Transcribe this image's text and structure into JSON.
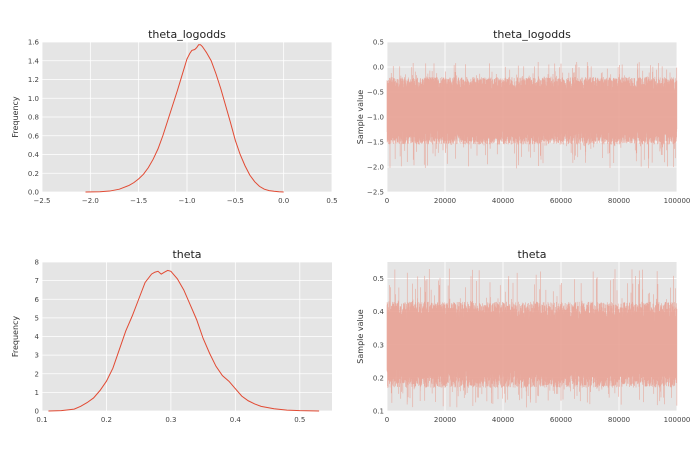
{
  "chart_data": [
    {
      "type": "line",
      "title": "theta_logodds",
      "xlabel": "",
      "ylabel": "Frequency",
      "xlim": [
        -2.5,
        0.5
      ],
      "ylim": [
        0,
        1.6
      ],
      "xticks": [
        -2.5,
        -2.0,
        -1.5,
        -1.0,
        -0.5,
        0.0,
        0.5
      ],
      "yticks": [
        0.0,
        0.2,
        0.4,
        0.6,
        0.8,
        1.0,
        1.2,
        1.4,
        1.6
      ],
      "xtick_labels": [
        "−2.5",
        "−2.0",
        "−1.5",
        "−1.0",
        "−0.5",
        "0.0",
        "0.5"
      ],
      "ytick_labels": [
        "0.0",
        "0.2",
        "0.4",
        "0.6",
        "0.8",
        "1.0",
        "1.2",
        "1.4",
        "1.6"
      ],
      "series": [
        {
          "color": "#e24a33",
          "x": [
            -2.05,
            -1.9,
            -1.8,
            -1.7,
            -1.6,
            -1.55,
            -1.5,
            -1.45,
            -1.4,
            -1.35,
            -1.3,
            -1.25,
            -1.2,
            -1.15,
            -1.1,
            -1.05,
            -1.0,
            -0.97,
            -0.95,
            -0.92,
            -0.9,
            -0.88,
            -0.86,
            -0.84,
            -0.82,
            -0.8,
            -0.75,
            -0.7,
            -0.65,
            -0.6,
            -0.55,
            -0.5,
            -0.45,
            -0.4,
            -0.35,
            -0.3,
            -0.25,
            -0.2,
            -0.15,
            -0.1,
            -0.05,
            0.0
          ],
          "y": [
            0.0,
            0.003,
            0.01,
            0.03,
            0.07,
            0.1,
            0.14,
            0.19,
            0.26,
            0.35,
            0.46,
            0.6,
            0.76,
            0.92,
            1.08,
            1.25,
            1.42,
            1.48,
            1.51,
            1.52,
            1.54,
            1.57,
            1.57,
            1.55,
            1.52,
            1.49,
            1.4,
            1.26,
            1.1,
            0.92,
            0.74,
            0.55,
            0.4,
            0.28,
            0.18,
            0.11,
            0.06,
            0.03,
            0.015,
            0.008,
            0.003,
            0.0
          ]
        }
      ]
    },
    {
      "type": "line",
      "title": "theta_logodds",
      "xlabel": "",
      "ylabel": "Sample value",
      "xlim": [
        0,
        100000
      ],
      "ylim": [
        -2.5,
        0.5
      ],
      "xticks": [
        0,
        20000,
        40000,
        60000,
        80000,
        100000
      ],
      "yticks": [
        -2.5,
        -2.0,
        -1.5,
        -1.0,
        -0.5,
        0.0,
        0.5
      ],
      "xtick_labels": [
        "0",
        "20000",
        "40000",
        "60000",
        "80000",
        "100000"
      ],
      "ytick_labels": [
        "−2.5",
        "−2.0",
        "−1.5",
        "−1.0",
        "−0.5",
        "0.0",
        "0.5"
      ],
      "trace": {
        "n": 100000,
        "center": -0.87,
        "band": [
          -1.55,
          -0.2
        ],
        "extremes": [
          -2.05,
          0.1
        ],
        "color": "#e8a194"
      }
    },
    {
      "type": "line",
      "title": "theta",
      "xlabel": "",
      "ylabel": "Frequency",
      "xlim": [
        0.1,
        0.55
      ],
      "ylim": [
        0,
        8
      ],
      "xticks": [
        0.1,
        0.2,
        0.3,
        0.4,
        0.5
      ],
      "yticks": [
        0,
        1,
        2,
        3,
        4,
        5,
        6,
        7,
        8
      ],
      "xtick_labels": [
        "0.1",
        "0.2",
        "0.3",
        "0.4",
        "0.5"
      ],
      "ytick_labels": [
        "0",
        "1",
        "2",
        "3",
        "4",
        "5",
        "6",
        "7",
        "8"
      ],
      "series": [
        {
          "color": "#e24a33",
          "x": [
            0.11,
            0.13,
            0.15,
            0.16,
            0.17,
            0.18,
            0.19,
            0.2,
            0.21,
            0.22,
            0.23,
            0.24,
            0.25,
            0.26,
            0.27,
            0.275,
            0.28,
            0.285,
            0.29,
            0.295,
            0.3,
            0.305,
            0.31,
            0.32,
            0.33,
            0.34,
            0.35,
            0.36,
            0.37,
            0.38,
            0.39,
            0.4,
            0.41,
            0.42,
            0.43,
            0.44,
            0.46,
            0.48,
            0.5,
            0.53
          ],
          "y": [
            0.0,
            0.02,
            0.1,
            0.25,
            0.45,
            0.7,
            1.1,
            1.6,
            2.3,
            3.3,
            4.3,
            5.1,
            6.0,
            6.9,
            7.35,
            7.45,
            7.5,
            7.35,
            7.45,
            7.55,
            7.5,
            7.3,
            7.1,
            6.5,
            5.7,
            4.9,
            3.9,
            3.1,
            2.4,
            1.9,
            1.6,
            1.2,
            0.8,
            0.55,
            0.38,
            0.25,
            0.12,
            0.05,
            0.02,
            0.0
          ]
        }
      ]
    },
    {
      "type": "line",
      "title": "theta",
      "xlabel": "",
      "ylabel": "Sample value",
      "xlim": [
        0,
        100000
      ],
      "ylim": [
        0.1,
        0.55
      ],
      "xticks": [
        0,
        20000,
        40000,
        60000,
        80000,
        100000
      ],
      "yticks": [
        0.1,
        0.2,
        0.3,
        0.4,
        0.5
      ],
      "xtick_labels": [
        "0",
        "20000",
        "40000",
        "60000",
        "80000",
        "100000"
      ],
      "ytick_labels": [
        "0.1",
        "0.2",
        "0.3",
        "0.4",
        "0.5"
      ],
      "trace": {
        "n": 100000,
        "center": 0.3,
        "band": [
          0.17,
          0.43
        ],
        "extremes": [
          0.11,
          0.53
        ],
        "color": "#e8a194"
      }
    }
  ]
}
